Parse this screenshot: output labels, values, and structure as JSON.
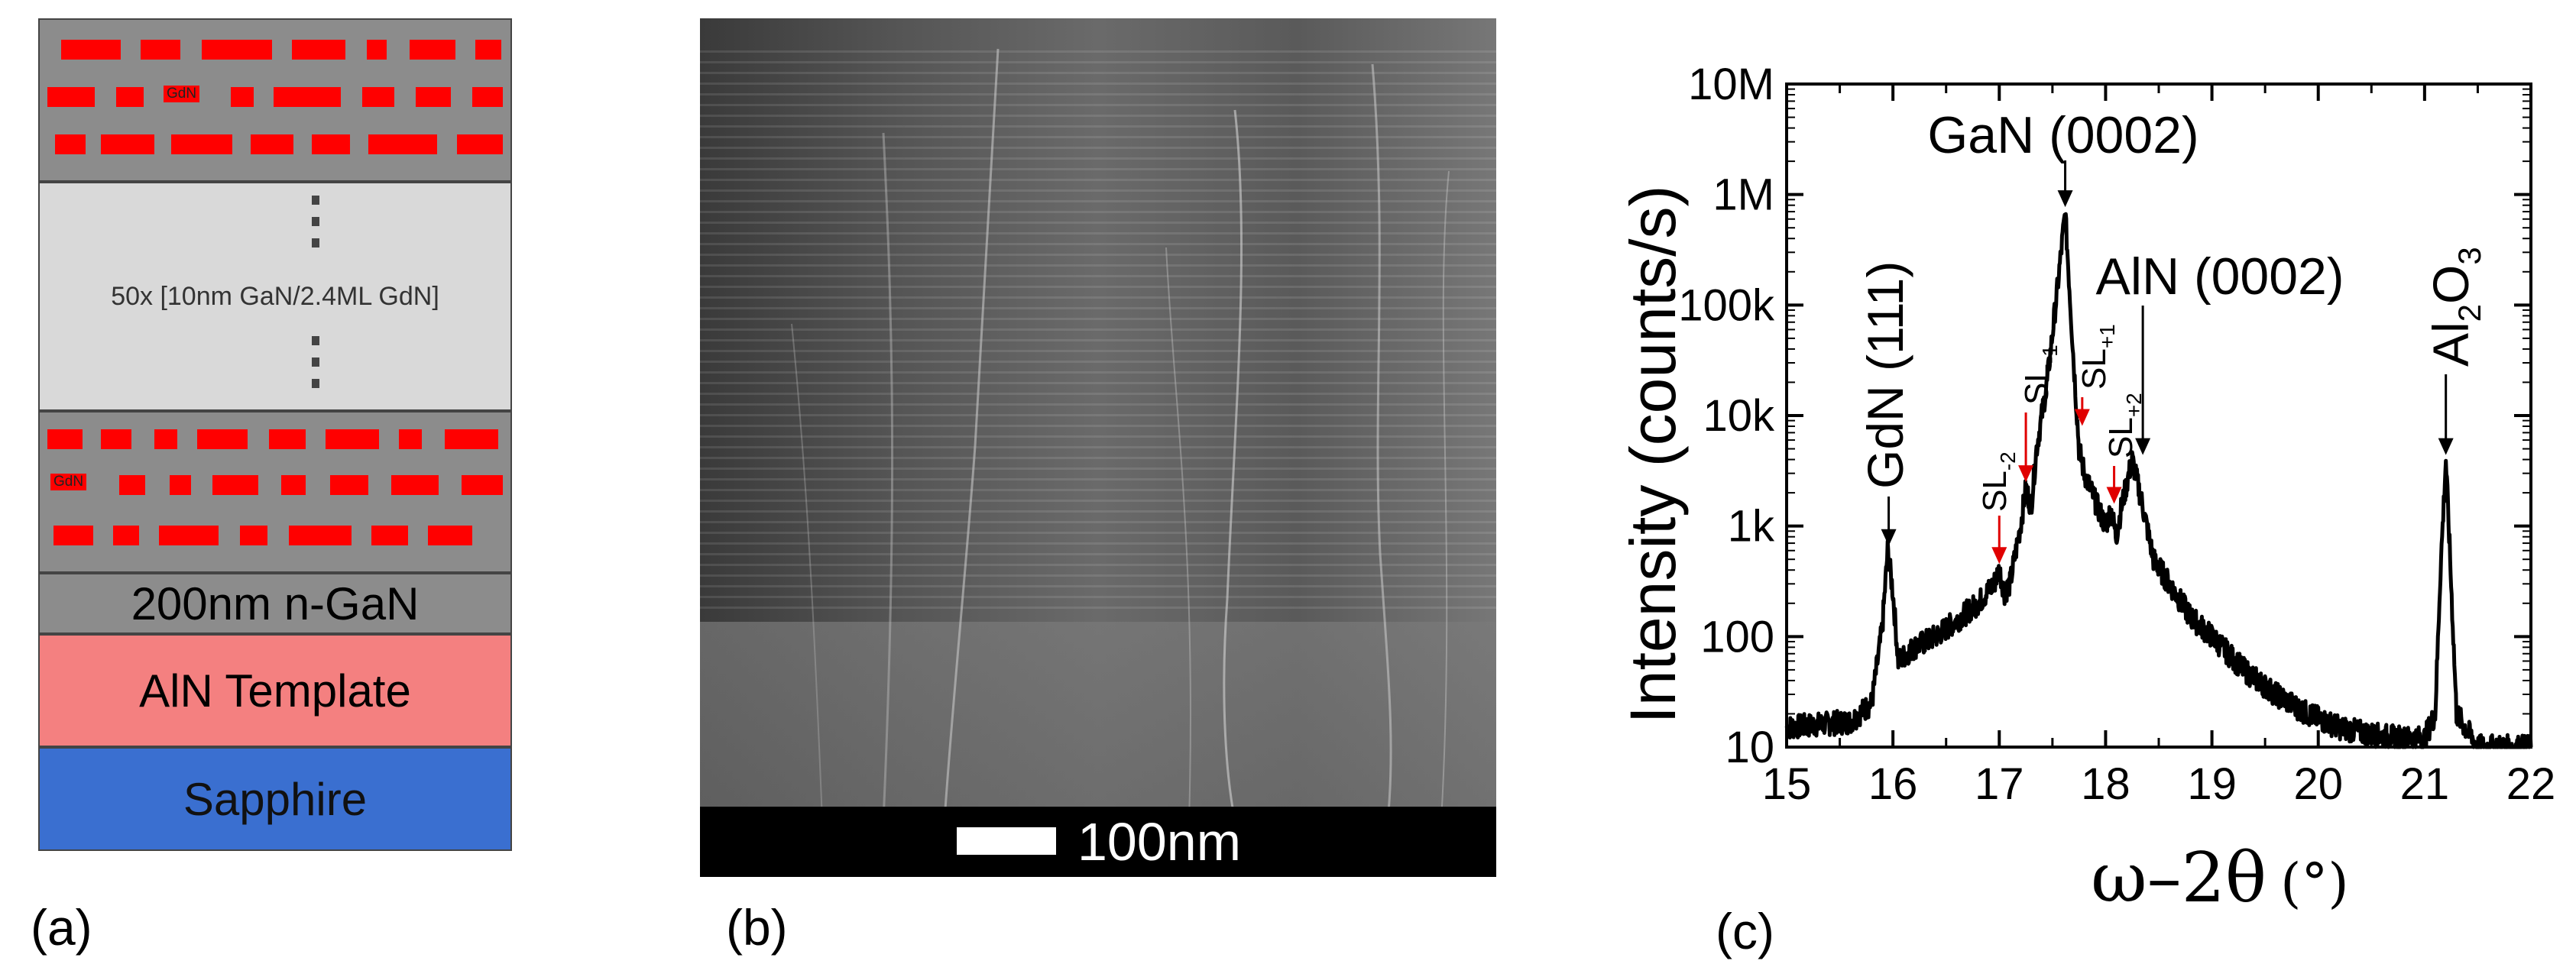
{
  "panel_a": {
    "label": "(a)",
    "gdn_top": "GdN",
    "gdn_bottom": "GdN",
    "repeat_label": "50x [10nm GaN/2.4ML GdN]",
    "layer_ngan": "200nm n-GaN",
    "layer_aln": "AlN Template",
    "layer_sapphire": "Sapphire",
    "colors": {
      "gdn": "#ff0000",
      "gan": "#8c8c8c",
      "aln": "#f48080",
      "sapphire": "#3a6fd0"
    }
  },
  "panel_b": {
    "label": "(b)",
    "scale_label": "100nm"
  },
  "panel_c": {
    "label": "(c)",
    "xlabel_symbol": "ω–2θ",
    "xlabel_unit": "(°)",
    "ylabel": "Intensity (counts/s)",
    "x_ticks": [
      "15",
      "16",
      "17",
      "18",
      "19",
      "20",
      "21",
      "22"
    ],
    "y_ticks": [
      "10",
      "100",
      "1k",
      "10k",
      "100k",
      "1M",
      "10M"
    ],
    "annotations": {
      "gan": "GaN (0002)",
      "aln": "AlN (0002)",
      "gdn": "GdN (111)",
      "al2o3_a": "Al",
      "al2o3_2": "2",
      "al2o3_o": "O",
      "al2o3_3": "3",
      "sl": "SL",
      "sl_m2": "-2",
      "sl_m1": "-1",
      "sl_p1": "+1",
      "sl_p2": "+2"
    }
  },
  "chart_data": {
    "type": "line",
    "xlabel": "ω–2θ (°)",
    "ylabel": "Intensity (counts/s)",
    "xlim": [
      15,
      22
    ],
    "ylim": [
      10,
      10000000
    ],
    "yscale": "log",
    "grid": false,
    "series": [
      {
        "x": [
          15.0,
          15.3,
          15.6,
          15.8,
          15.9,
          15.95,
          16.0,
          16.05,
          16.2,
          16.4,
          16.6,
          16.8,
          16.95,
          17.0,
          17.05,
          17.1,
          17.2,
          17.25,
          17.3,
          17.35,
          17.45,
          17.55,
          17.62,
          17.7,
          17.75,
          17.8,
          17.9,
          18.0,
          18.05,
          18.1,
          18.15,
          18.25,
          18.35,
          18.45,
          18.6,
          18.8,
          19.0,
          19.3,
          19.6,
          19.9,
          20.2,
          20.5,
          20.8,
          21.0,
          21.1,
          21.15,
          21.2,
          21.25,
          21.3,
          21.5,
          21.8,
          22.0
        ],
        "y": [
          15,
          16,
          17,
          25,
          120,
          600,
          250,
          60,
          80,
          100,
          140,
          200,
          300,
          400,
          250,
          300,
          1000,
          2200,
          1500,
          5000,
          20000,
          150000,
          700000,
          30000,
          5000,
          3000,
          1700,
          1000,
          1400,
          800,
          1500,
          4000,
          1500,
          500,
          300,
          150,
          100,
          50,
          30,
          20,
          15,
          13,
          12,
          12,
          20,
          400,
          4000,
          300,
          20,
          10,
          10,
          10
        ]
      }
    ],
    "peaks": [
      {
        "label": "GdN (111)",
        "x": 15.96,
        "y": 600
      },
      {
        "label": "GaN (0002)",
        "x": 17.62,
        "y": 700000
      },
      {
        "label": "AlN (0002)",
        "x": 18.35,
        "y": 4000
      },
      {
        "label": "Al2O3",
        "x": 21.2,
        "y": 4000
      },
      {
        "label": "SL-2",
        "x": 17.0,
        "y": 400
      },
      {
        "label": "SL-1",
        "x": 17.25,
        "y": 2200
      },
      {
        "label": "SL+1",
        "x": 17.78,
        "y": 5000
      },
      {
        "label": "SL+2",
        "x": 18.08,
        "y": 1400
      }
    ]
  }
}
